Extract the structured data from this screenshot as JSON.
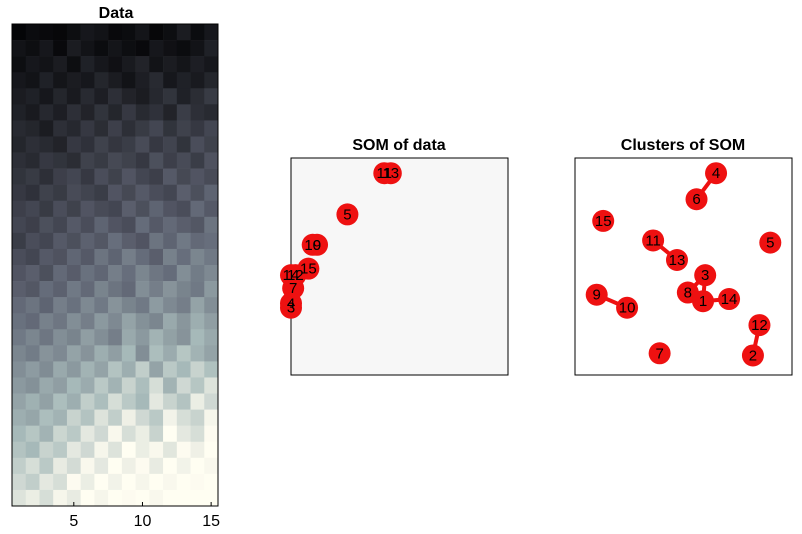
{
  "chart_data": [
    {
      "type": "heatmap",
      "title": "Data",
      "xticks": [
        "5",
        "10",
        "15"
      ],
      "xtick_values": [
        5,
        10,
        15
      ],
      "x_range": [
        0.5,
        15.5
      ],
      "colormap": "bone",
      "n_cols": 15,
      "n_rows": 30,
      "rows": [
        [
          0.02,
          0.05,
          0.04,
          0.03,
          0.06,
          0.1,
          0.08,
          0.04,
          0.05,
          0.09,
          0.03,
          0.06,
          0.12,
          0.05,
          0.1
        ],
        [
          0.08,
          0.06,
          0.1,
          0.04,
          0.12,
          0.08,
          0.05,
          0.09,
          0.06,
          0.04,
          0.1,
          0.07,
          0.05,
          0.08,
          0.14
        ],
        [
          0.06,
          0.1,
          0.08,
          0.12,
          0.06,
          0.14,
          0.1,
          0.07,
          0.11,
          0.15,
          0.08,
          0.12,
          0.09,
          0.13,
          0.1
        ],
        [
          0.1,
          0.08,
          0.14,
          0.09,
          0.12,
          0.1,
          0.16,
          0.12,
          0.08,
          0.13,
          0.18,
          0.1,
          0.14,
          0.11,
          0.16
        ],
        [
          0.12,
          0.14,
          0.1,
          0.16,
          0.11,
          0.18,
          0.13,
          0.2,
          0.15,
          0.12,
          0.17,
          0.22,
          0.14,
          0.19,
          0.25
        ],
        [
          0.14,
          0.11,
          0.17,
          0.13,
          0.2,
          0.15,
          0.22,
          0.16,
          0.24,
          0.18,
          0.21,
          0.15,
          0.26,
          0.2,
          0.18
        ],
        [
          0.18,
          0.16,
          0.12,
          0.2,
          0.17,
          0.24,
          0.19,
          0.27,
          0.2,
          0.25,
          0.3,
          0.22,
          0.28,
          0.24,
          0.3
        ],
        [
          0.16,
          0.2,
          0.18,
          0.15,
          0.24,
          0.21,
          0.28,
          0.23,
          0.26,
          0.32,
          0.24,
          0.29,
          0.22,
          0.33,
          0.28
        ],
        [
          0.2,
          0.18,
          0.24,
          0.22,
          0.19,
          0.28,
          0.25,
          0.31,
          0.28,
          0.24,
          0.34,
          0.27,
          0.32,
          0.26,
          0.35
        ],
        [
          0.22,
          0.25,
          0.2,
          0.27,
          0.3,
          0.24,
          0.33,
          0.28,
          0.36,
          0.3,
          0.27,
          0.38,
          0.31,
          0.36,
          0.32
        ],
        [
          0.24,
          0.21,
          0.28,
          0.25,
          0.32,
          0.29,
          0.26,
          0.36,
          0.31,
          0.38,
          0.33,
          0.3,
          0.4,
          0.34,
          0.42
        ],
        [
          0.27,
          0.3,
          0.25,
          0.33,
          0.28,
          0.36,
          0.32,
          0.3,
          0.4,
          0.34,
          0.42,
          0.36,
          0.33,
          0.44,
          0.38
        ],
        [
          0.3,
          0.27,
          0.34,
          0.3,
          0.38,
          0.33,
          0.42,
          0.36,
          0.33,
          0.45,
          0.38,
          0.44,
          0.4,
          0.37,
          0.48
        ],
        [
          0.26,
          0.33,
          0.3,
          0.38,
          0.34,
          0.41,
          0.37,
          0.46,
          0.4,
          0.36,
          0.48,
          0.42,
          0.5,
          0.44,
          0.46
        ],
        [
          0.33,
          0.3,
          0.38,
          0.35,
          0.43,
          0.38,
          0.48,
          0.42,
          0.52,
          0.45,
          0.4,
          0.53,
          0.46,
          0.55,
          0.5
        ],
        [
          0.36,
          0.4,
          0.34,
          0.44,
          0.39,
          0.47,
          0.43,
          0.52,
          0.46,
          0.55,
          0.49,
          0.45,
          0.58,
          0.51,
          0.56
        ],
        [
          0.4,
          0.37,
          0.45,
          0.41,
          0.5,
          0.44,
          0.54,
          0.48,
          0.44,
          0.58,
          0.52,
          0.6,
          0.54,
          0.5,
          0.62
        ],
        [
          0.44,
          0.48,
          0.42,
          0.52,
          0.47,
          0.56,
          0.5,
          0.6,
          0.54,
          0.5,
          0.63,
          0.56,
          0.52,
          0.66,
          0.58
        ],
        [
          0.47,
          0.44,
          0.53,
          0.49,
          0.58,
          0.52,
          0.62,
          0.56,
          0.66,
          0.59,
          0.55,
          0.68,
          0.61,
          0.7,
          0.64
        ],
        [
          0.5,
          0.55,
          0.49,
          0.58,
          0.54,
          0.64,
          0.58,
          0.52,
          0.68,
          0.62,
          0.72,
          0.65,
          0.6,
          0.74,
          0.68
        ],
        [
          0.55,
          0.51,
          0.6,
          0.56,
          0.66,
          0.6,
          0.7,
          0.64,
          0.74,
          0.58,
          0.76,
          0.69,
          0.79,
          0.72,
          0.66
        ],
        [
          0.58,
          0.63,
          0.57,
          0.68,
          0.62,
          0.72,
          0.66,
          0.78,
          0.7,
          0.82,
          0.66,
          0.8,
          0.74,
          0.84,
          0.77
        ],
        [
          0.62,
          0.59,
          0.68,
          0.64,
          0.74,
          0.69,
          0.8,
          0.72,
          0.84,
          0.76,
          0.88,
          0.72,
          0.86,
          0.79,
          0.9
        ],
        [
          0.66,
          0.71,
          0.65,
          0.76,
          0.7,
          0.82,
          0.76,
          0.88,
          0.8,
          0.74,
          0.92,
          0.84,
          0.78,
          0.94,
          0.86
        ],
        [
          0.7,
          0.67,
          0.76,
          0.72,
          0.84,
          0.78,
          0.9,
          0.82,
          0.95,
          0.86,
          0.8,
          0.96,
          0.88,
          0.84,
          0.97
        ],
        [
          0.74,
          0.79,
          0.72,
          0.85,
          0.8,
          0.92,
          0.86,
          0.98,
          0.88,
          0.94,
          0.84,
          1.0,
          0.92,
          0.88,
          0.99
        ],
        [
          0.78,
          0.74,
          0.84,
          0.8,
          0.92,
          0.86,
          0.97,
          0.9,
          1.0,
          0.94,
          0.98,
          0.91,
          0.99,
          0.95,
          1.0
        ],
        [
          0.82,
          0.88,
          0.8,
          0.93,
          0.87,
          0.98,
          0.92,
          1.0,
          0.95,
          0.99,
          0.93,
          1.0,
          0.96,
          1.0,
          0.98
        ],
        [
          0.86,
          0.82,
          0.92,
          0.88,
          0.99,
          0.94,
          1.0,
          0.96,
          1.0,
          0.97,
          1.0,
          0.98,
          1.0,
          0.99,
          1.0
        ],
        [
          0.9,
          0.94,
          0.88,
          0.97,
          0.93,
          1.0,
          0.97,
          1.0,
          0.99,
          1.0,
          0.98,
          1.0,
          1.0,
          1.0,
          1.0
        ]
      ]
    },
    {
      "type": "scatter",
      "title": "SOM of data",
      "x_range": [
        0,
        10
      ],
      "y_range": [
        0,
        10
      ],
      "marker_color": "#ee1111",
      "points": [
        {
          "label": "11",
          "x": 4.3,
          "y": 9.3
        },
        {
          "label": "13",
          "x": 4.6,
          "y": 9.3
        },
        {
          "label": "5",
          "x": 2.6,
          "y": 7.4
        },
        {
          "label": "10",
          "x": 1.0,
          "y": 6.0
        },
        {
          "label": "9",
          "x": 1.2,
          "y": 6.0
        },
        {
          "label": "15",
          "x": 0.8,
          "y": 4.9
        },
        {
          "label": "14",
          "x": 0.0,
          "y": 4.6
        },
        {
          "label": "12",
          "x": 0.2,
          "y": 4.6
        },
        {
          "label": "7",
          "x": 0.1,
          "y": 4.0
        },
        {
          "label": "4",
          "x": 0.0,
          "y": 3.3
        },
        {
          "label": "3",
          "x": 0.0,
          "y": 3.1
        }
      ]
    },
    {
      "type": "scatter",
      "title": "Clusters of SOM",
      "x_range": [
        0,
        10
      ],
      "y_range": [
        0,
        10
      ],
      "marker_color": "#ee1111",
      "points": [
        {
          "label": "4",
          "x": 6.5,
          "y": 9.3
        },
        {
          "label": "6",
          "x": 5.6,
          "y": 8.1
        },
        {
          "label": "15",
          "x": 1.3,
          "y": 7.1
        },
        {
          "label": "11",
          "x": 3.6,
          "y": 6.2
        },
        {
          "label": "5",
          "x": 9.0,
          "y": 6.1
        },
        {
          "label": "13",
          "x": 4.7,
          "y": 5.3
        },
        {
          "label": "3",
          "x": 6.0,
          "y": 4.6
        },
        {
          "label": "8",
          "x": 5.2,
          "y": 3.8
        },
        {
          "label": "9",
          "x": 1.0,
          "y": 3.7
        },
        {
          "label": "1",
          "x": 5.9,
          "y": 3.4
        },
        {
          "label": "14",
          "x": 7.1,
          "y": 3.5
        },
        {
          "label": "10",
          "x": 2.4,
          "y": 3.1
        },
        {
          "label": "12",
          "x": 8.5,
          "y": 2.3
        },
        {
          "label": "7",
          "x": 3.9,
          "y": 1.0
        },
        {
          "label": "2",
          "x": 8.2,
          "y": 0.9
        }
      ],
      "links": [
        [
          "4",
          "6"
        ],
        [
          "11",
          "13"
        ],
        [
          "9",
          "10"
        ],
        [
          "12",
          "2"
        ],
        [
          "3",
          "8"
        ],
        [
          "8",
          "1"
        ],
        [
          "3",
          "1"
        ],
        [
          "1",
          "14"
        ]
      ]
    }
  ]
}
